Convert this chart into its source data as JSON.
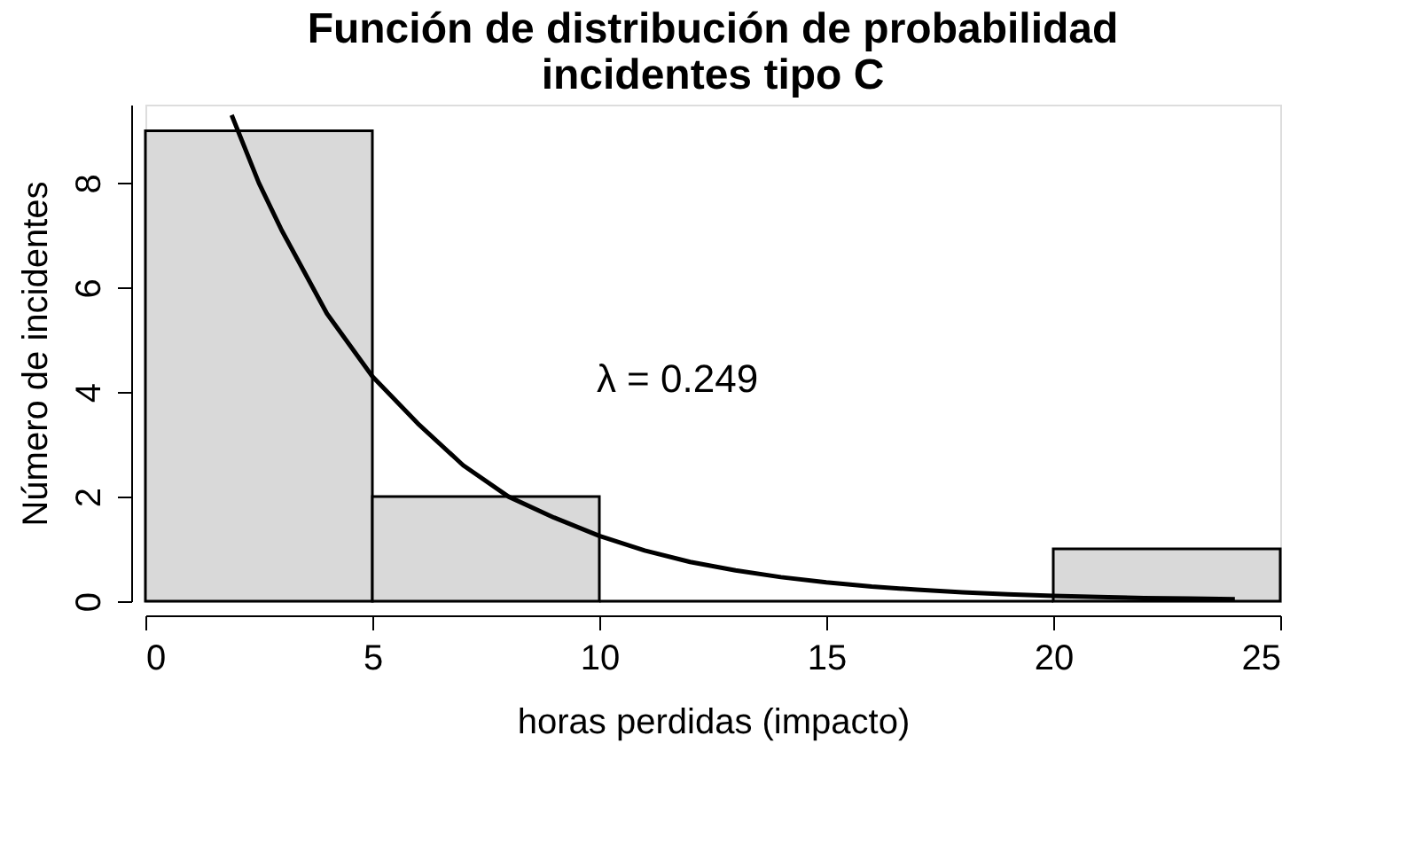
{
  "chart_data": {
    "type": "histogram",
    "title": [
      "Función de distribución de probabilidad",
      "incidentes tipo C"
    ],
    "xlabel": "horas perdidas (impacto)",
    "ylabel": "Número de incidentes",
    "bins": [
      0,
      5,
      10,
      15,
      20,
      25
    ],
    "values": [
      9,
      2,
      0,
      0,
      1
    ],
    "color": "#000000",
    "series": [
      {
        "type": "line",
        "color": "#000000",
        "x": [
          1.9,
          2.5,
          3,
          4,
          5,
          6,
          7,
          8,
          9,
          10,
          11,
          12,
          13,
          14,
          15,
          16,
          17,
          18,
          19,
          20,
          21,
          22,
          23,
          24
        ],
        "values": [
          9.3,
          8.0,
          7.1,
          5.5,
          4.3,
          3.4,
          2.6,
          2.0,
          1.6,
          1.25,
          0.97,
          0.75,
          0.59,
          0.46,
          0.36,
          0.28,
          0.22,
          0.17,
          0.13,
          0.1,
          0.08,
          0.06,
          0.05,
          0.04
        ]
      }
    ],
    "annotations": [
      "λ = 0.249"
    ],
    "xlim": [
      0,
      25
    ],
    "ylim": [
      0,
      9.5
    ],
    "xticks": [
      0,
      5,
      10,
      15,
      20,
      25
    ],
    "yticks": [
      0,
      2,
      4,
      6,
      8
    ],
    "grid": false
  }
}
